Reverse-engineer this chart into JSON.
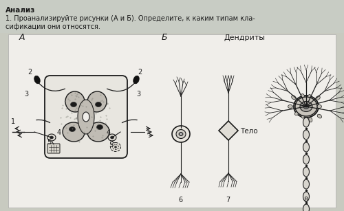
{
  "bg_color": "#b8bab0",
  "page_bg": "#c8cac0",
  "inner_bg": "#f0eeea",
  "title_line1": "Анализ",
  "title_line2": "1. Проанализируйте рисунки (А и Б). Определите, к каким типам кла-",
  "title_line3": "сификации они относятся.",
  "label_A": "А",
  "label_B": "Б",
  "label_dendrity": "Дендриты",
  "label_telo": "Тело",
  "text_color": "#1a1a1a",
  "draw_color": "#1a1a1a",
  "figsize": [
    5.0,
    3.07
  ],
  "dpi": 100
}
